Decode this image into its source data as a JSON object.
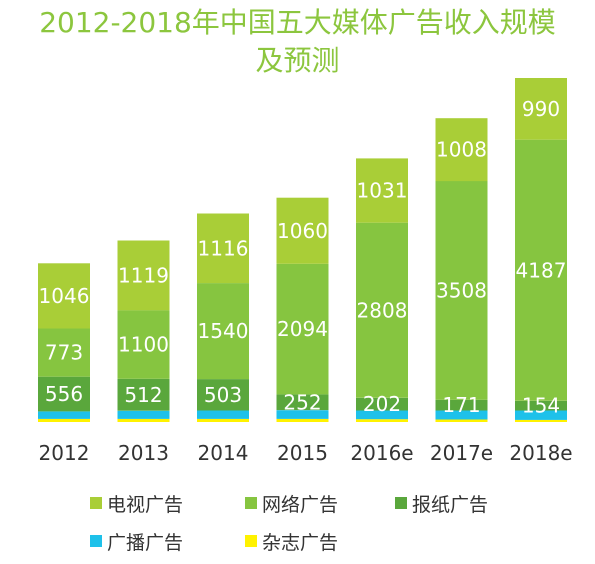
{
  "chart_data": {
    "type": "bar",
    "stacked": true,
    "title": "2012-2018年中国五大媒体广告收入规模及预测",
    "title_lines": [
      "2012-2018年中国五大媒体广告收入规模",
      "及预测"
    ],
    "categories": [
      "2012",
      "2013",
      "2014",
      "2015",
      "2016e",
      "2017e",
      "2018e"
    ],
    "series": [
      {
        "name": "杂志广告",
        "color": "#fff200",
        "values": [
          50,
          50,
          50,
          50,
          45,
          40,
          35
        ]
      },
      {
        "name": "广播广告",
        "color": "#1ec1ea",
        "values": [
          120,
          130,
          135,
          140,
          140,
          145,
          150
        ]
      },
      {
        "name": "报纸广告",
        "color": "#5aa73c",
        "values": [
          556,
          512,
          503,
          252,
          202,
          171,
          154
        ],
        "show_labels": true
      },
      {
        "name": "网络广告",
        "color": "#86c540",
        "values": [
          773,
          1100,
          1540,
          2094,
          2808,
          3508,
          4187
        ],
        "show_labels": true
      },
      {
        "name": "电视广告",
        "color": "#a9ce37",
        "values": [
          1046,
          1119,
          1116,
          1060,
          1031,
          1008,
          990
        ],
        "show_labels": true
      }
    ],
    "legend_order": [
      "电视广告",
      "网络广告",
      "报纸广告",
      "广播广告",
      "杂志广告"
    ],
    "legend_position": "bottom",
    "grid": false,
    "ylim": [
      0,
      5516
    ]
  }
}
